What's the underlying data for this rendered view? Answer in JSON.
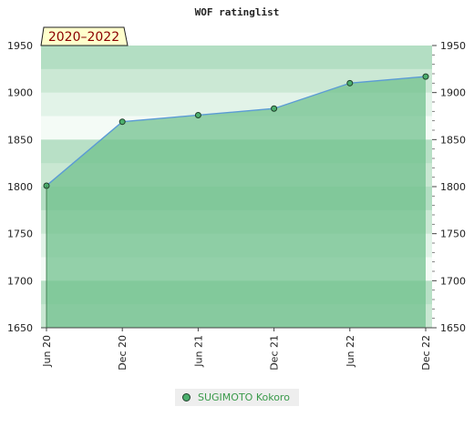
{
  "chart_data": {
    "type": "area",
    "title": "WOF ratinglist",
    "period_badge": "2020–2022",
    "x_tick_labels": [
      "Jun 20",
      "Dec 20",
      "Jun 21",
      "Dec 21",
      "Jun 22",
      "Dec 22"
    ],
    "y_ticks": [
      1650,
      1700,
      1750,
      1800,
      1850,
      1900,
      1950
    ],
    "ylim": [
      1650,
      1950
    ],
    "legend_position": "bottom-center",
    "series": [
      {
        "name": "SUGIMOTO Kokoro",
        "x": [
          "Jun 20",
          "Dec 20",
          "Jun 21",
          "Dec 21",
          "Jun 22",
          "Dec 22"
        ],
        "values": [
          1801,
          1869,
          1876,
          1883,
          1910,
          1917
        ]
      }
    ],
    "colors": {
      "line": "#5b9bd5",
      "fill": "#6dbf8b",
      "marker_fill": "#4caf6d",
      "marker_stroke": "#1f3f2a",
      "badge_bg": "#ffffcc",
      "legend_text": "#3a9a4a"
    }
  }
}
